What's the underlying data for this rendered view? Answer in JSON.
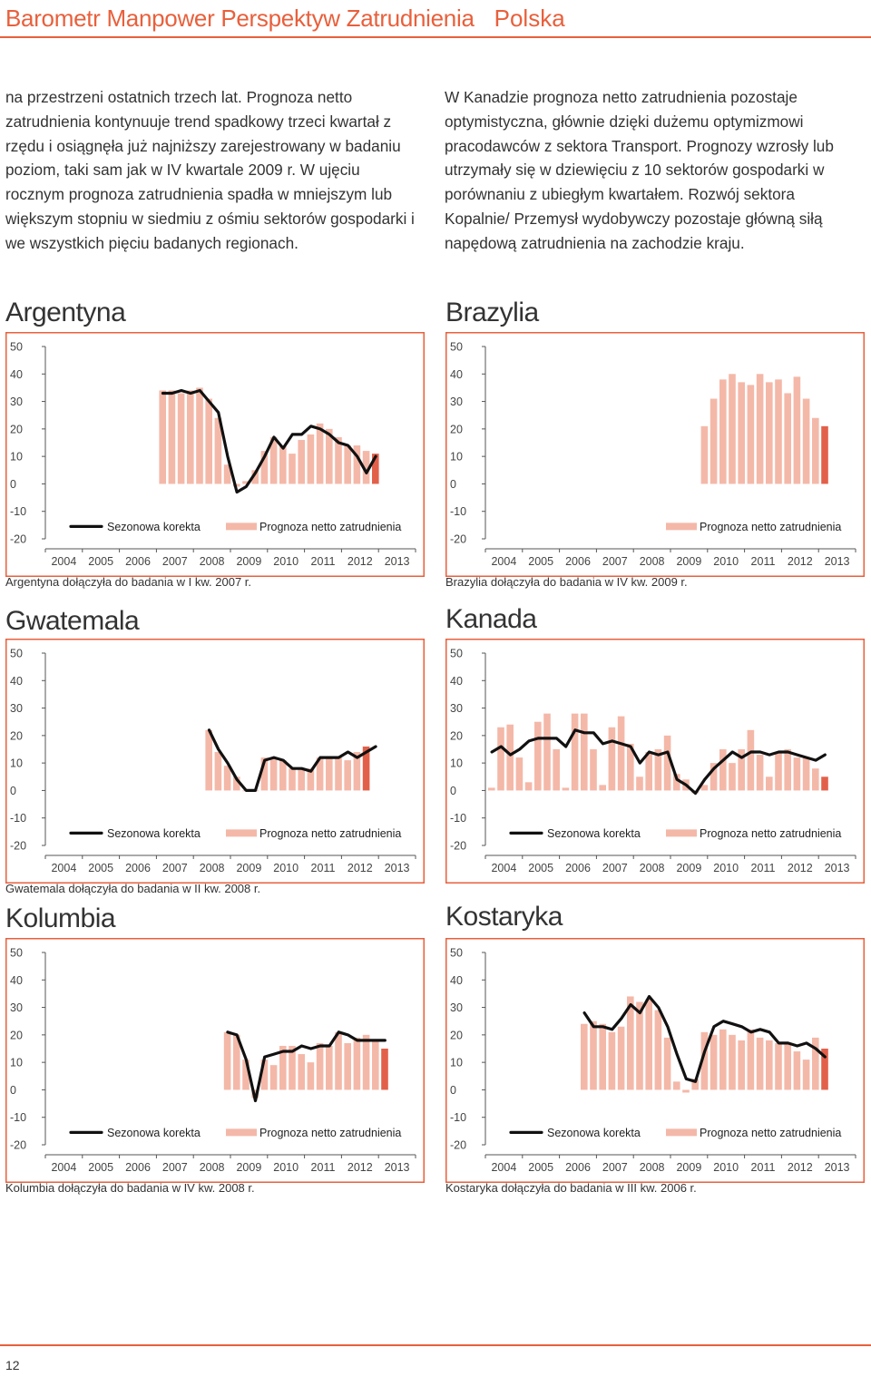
{
  "header": {
    "title": "Barometr Manpower Perspektyw Zatrudnienia",
    "country": "Polska"
  },
  "text_left": "na przestrzeni ostatnich trzech lat. Prognoza netto zatrudnienia kontynuuje trend spadkowy trzeci kwartał z rzędu i osiągnęła już najniższy zarejestrowany w badaniu poziom, taki sam jak w IV kwartale 2009 r. W ujęciu rocznym prognoza zatrudnienia spadła w mniejszym lub większym stopniu w siedmiu z ośmiu sektorów gospodarki i we wszystkich pięciu badanych regionach.",
  "text_right": "W Kanadzie prognoza netto zatrudnienia pozostaje optymistyczna, głównie dzięki dużemu optymizmowi pracodawców z sektora Transport. Prognozy wzrosły lub utrzymały się w dziewięciu z 10 sektorów gospodarki w porównaniu z ubiegłym kwartałem. Rozwój sektora Kopalnie/ Przemysł wydobywczy pozostaje główną siłą napędową zatrudnienia na zachodzie kraju.",
  "page_number": "12",
  "colors": {
    "accent": "#e8603c",
    "bar": "#f4b8a8",
    "bar_latest": "#e2604a",
    "line": "#111111"
  },
  "legend": {
    "line_label": "Sezonowa korekta",
    "bar_label": "Prognoza netto zatrudnienia"
  },
  "chart_data": [
    {
      "id": "argentyna",
      "type": "bar",
      "title": "Argentyna",
      "note": "Argentyna dołączyła do badania w I kw. 2007 r.",
      "xlabel": "",
      "ylabel": "",
      "ylim": [
        -20,
        50
      ],
      "yticks": [
        "50",
        "40",
        "30",
        "20",
        "10",
        "0",
        "-10",
        "-20"
      ],
      "years": [
        "2004",
        "2005",
        "2006",
        "2007",
        "2008",
        "2009",
        "2010",
        "2011",
        "2012",
        "2013"
      ],
      "has_line": true,
      "legend_line": true,
      "series": [
        {
          "name": "Prognoza netto zatrudnienia",
          "type": "bar",
          "values": [
            null,
            null,
            null,
            null,
            null,
            null,
            null,
            null,
            null,
            null,
            null,
            null,
            34,
            34,
            33,
            34,
            35,
            31,
            24,
            7,
            -1,
            1,
            5,
            12,
            17,
            14,
            11,
            16,
            18,
            22,
            20,
            17,
            14,
            14,
            12,
            11
          ]
        },
        {
          "name": "Sezonowa korekta",
          "type": "line",
          "values": [
            null,
            null,
            null,
            null,
            null,
            null,
            null,
            null,
            null,
            null,
            null,
            null,
            33,
            33,
            34,
            33,
            34,
            30,
            26,
            10,
            -3,
            -1,
            4,
            10,
            17,
            13,
            18,
            18,
            21,
            20,
            18,
            15,
            14,
            10,
            4,
            10
          ]
        }
      ]
    },
    {
      "id": "brazylia",
      "type": "bar",
      "title": "Brazylia",
      "note": "Brazylia dołączyła do badania w IV kw. 2009 r.",
      "xlabel": "",
      "ylabel": "",
      "ylim": [
        -20,
        50
      ],
      "yticks": [
        "50",
        "40",
        "30",
        "20",
        "10",
        "0",
        "-10",
        "-20"
      ],
      "years": [
        "2004",
        "2005",
        "2006",
        "2007",
        "2008",
        "2009",
        "2010",
        "2011",
        "2012",
        "2013"
      ],
      "has_line": false,
      "legend_line": false,
      "series": [
        {
          "name": "Prognoza netto zatrudnienia",
          "type": "bar",
          "values": [
            null,
            null,
            null,
            null,
            null,
            null,
            null,
            null,
            null,
            null,
            null,
            null,
            null,
            null,
            null,
            null,
            null,
            null,
            null,
            null,
            null,
            null,
            null,
            21,
            31,
            38,
            40,
            37,
            36,
            40,
            37,
            38,
            33,
            39,
            31,
            24,
            21
          ]
        }
      ]
    },
    {
      "id": "gwatemala",
      "type": "bar",
      "title": "Gwatemala",
      "note": "Gwatemala dołączyła do badania w II kw. 2008 r.",
      "xlabel": "",
      "ylabel": "",
      "ylim": [
        -20,
        50
      ],
      "yticks": [
        "50",
        "40",
        "30",
        "20",
        "10",
        "0",
        "-10",
        "-20"
      ],
      "years": [
        "2004",
        "2005",
        "2006",
        "2007",
        "2008",
        "2009",
        "2010",
        "2011",
        "2012",
        "2013"
      ],
      "has_line": true,
      "legend_line": true,
      "series": [
        {
          "name": "Prognoza netto zatrudnienia",
          "type": "bar",
          "values": [
            null,
            null,
            null,
            null,
            null,
            null,
            null,
            null,
            null,
            null,
            null,
            null,
            null,
            null,
            null,
            null,
            null,
            22,
            14,
            9,
            5,
            0,
            0,
            12,
            12,
            11,
            8,
            8,
            8,
            12,
            12,
            12,
            11,
            14,
            16
          ]
        },
        {
          "name": "Sezonowa korekta",
          "type": "line",
          "values": [
            null,
            null,
            null,
            null,
            null,
            null,
            null,
            null,
            null,
            null,
            null,
            null,
            null,
            null,
            null,
            null,
            null,
            22,
            15,
            10,
            4,
            0,
            0,
            11,
            12,
            11,
            8,
            8,
            7,
            12,
            12,
            12,
            14,
            12,
            14,
            16
          ]
        }
      ]
    },
    {
      "id": "kanada",
      "type": "bar",
      "title": "Kanada",
      "note": "",
      "xlabel": "",
      "ylabel": "",
      "ylim": [
        -20,
        50
      ],
      "yticks": [
        "50",
        "40",
        "30",
        "20",
        "10",
        "0",
        "-10",
        "-20"
      ],
      "years": [
        "2004",
        "2005",
        "2006",
        "2007",
        "2008",
        "2009",
        "2010",
        "2011",
        "2012",
        "2013"
      ],
      "has_line": true,
      "legend_line": true,
      "series": [
        {
          "name": "Prognoza netto zatrudnienia",
          "type": "bar",
          "values": [
            1,
            23,
            24,
            12,
            3,
            25,
            28,
            15,
            1,
            28,
            28,
            15,
            2,
            23,
            27,
            17,
            5,
            14,
            15,
            20,
            6,
            4,
            -1,
            2,
            10,
            15,
            10,
            15,
            22,
            13,
            5,
            14,
            15,
            12,
            12,
            8,
            5
          ]
        },
        {
          "name": "Sezonowa korekta",
          "type": "line",
          "values": [
            14,
            16,
            13,
            15,
            18,
            19,
            19,
            19,
            16,
            22,
            21,
            21,
            17,
            18,
            17,
            16,
            10,
            14,
            13,
            14,
            4,
            2,
            -1,
            4,
            8,
            11,
            14,
            12,
            14,
            14,
            13,
            14,
            14,
            13,
            12,
            11,
            13
          ]
        }
      ]
    },
    {
      "id": "kolumbia",
      "type": "bar",
      "title": "Kolumbia",
      "note": "Kolumbia dołączyła do badania w IV kw. 2008 r.",
      "xlabel": "",
      "ylabel": "",
      "ylim": [
        -20,
        50
      ],
      "yticks": [
        "50",
        "40",
        "30",
        "20",
        "10",
        "0",
        "-10",
        "-20"
      ],
      "years": [
        "2004",
        "2005",
        "2006",
        "2007",
        "2008",
        "2009",
        "2010",
        "2011",
        "2012",
        "2013"
      ],
      "has_line": true,
      "legend_line": true,
      "series": [
        {
          "name": "Prognoza netto zatrudnienia",
          "type": "bar",
          "values": [
            null,
            null,
            null,
            null,
            null,
            null,
            null,
            null,
            null,
            null,
            null,
            null,
            null,
            null,
            null,
            null,
            null,
            null,
            null,
            21,
            20,
            11,
            -3,
            11,
            9,
            16,
            16,
            13,
            10,
            17,
            16,
            21,
            17,
            19,
            20,
            18,
            15
          ]
        },
        {
          "name": "Sezonowa korekta",
          "type": "line",
          "values": [
            null,
            null,
            null,
            null,
            null,
            null,
            null,
            null,
            null,
            null,
            null,
            null,
            null,
            null,
            null,
            null,
            null,
            null,
            null,
            21,
            20,
            11,
            -4,
            12,
            13,
            14,
            14,
            16,
            15,
            16,
            16,
            21,
            20,
            18,
            18,
            18,
            18
          ]
        }
      ]
    },
    {
      "id": "kostaryka",
      "type": "bar",
      "title": "Kostaryka",
      "note": "Kostaryka dołączyła do badania w III kw. 2006 r.",
      "xlabel": "",
      "ylabel": "",
      "ylim": [
        -20,
        50
      ],
      "yticks": [
        "50",
        "40",
        "30",
        "20",
        "10",
        "0",
        "-10",
        "-20"
      ],
      "years": [
        "2004",
        "2005",
        "2006",
        "2007",
        "2008",
        "2009",
        "2010",
        "2011",
        "2012",
        "2013"
      ],
      "has_line": true,
      "legend_line": true,
      "series": [
        {
          "name": "Prognoza netto zatrudnienia",
          "type": "bar",
          "values": [
            null,
            null,
            null,
            null,
            null,
            null,
            null,
            null,
            null,
            null,
            24,
            25,
            24,
            21,
            23,
            34,
            32,
            33,
            29,
            19,
            3,
            -1,
            4,
            21,
            20,
            22,
            20,
            18,
            22,
            19,
            18,
            17,
            17,
            14,
            11,
            19,
            15
          ]
        },
        {
          "name": "Sezonowa korekta",
          "type": "line",
          "values": [
            null,
            null,
            null,
            null,
            null,
            null,
            null,
            null,
            null,
            null,
            28,
            23,
            23,
            22,
            26,
            31,
            28,
            34,
            30,
            23,
            13,
            4,
            3,
            14,
            23,
            25,
            24,
            23,
            21,
            22,
            21,
            17,
            17,
            16,
            17,
            15,
            12
          ]
        }
      ]
    }
  ]
}
